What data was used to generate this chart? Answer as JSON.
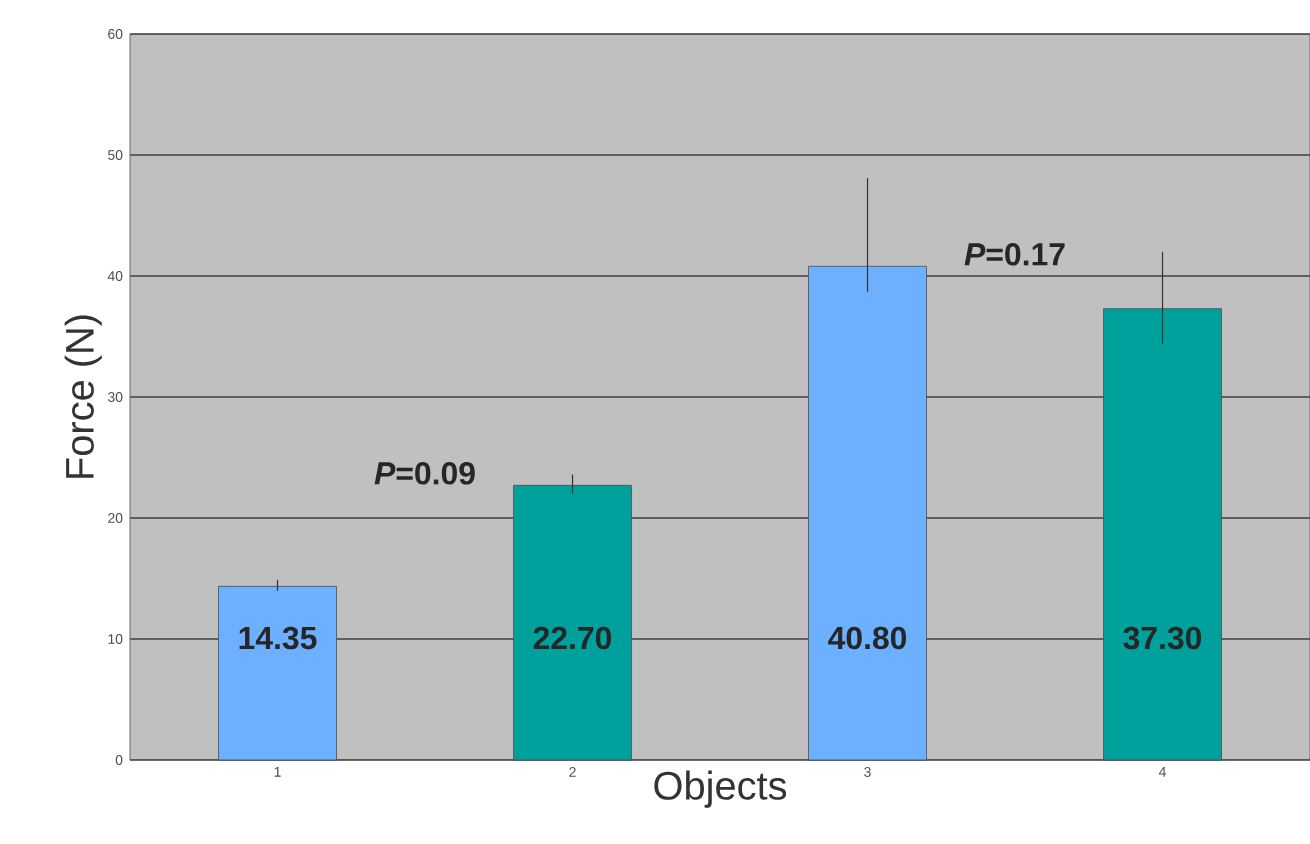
{
  "chart_data": {
    "type": "bar",
    "xlabel": "Objects",
    "ylabel": "Force (N)",
    "categories": [
      "1",
      "2",
      "3",
      "4"
    ],
    "values": [
      14.35,
      22.7,
      40.8,
      37.3
    ],
    "colors": [
      "#6cb0ff",
      "#00a19d",
      "#6cb0ff",
      "#00a19d"
    ],
    "errors": [
      [
        14.0,
        14.9
      ],
      [
        22.0,
        23.6
      ],
      [
        38.7,
        48.1
      ],
      [
        34.4,
        42.0
      ]
    ],
    "value_labels": [
      "14.35",
      "22.70",
      "40.80",
      "37.30"
    ],
    "annotations": [
      "*P*=0.09",
      "*P*=0.17"
    ],
    "ylim": [
      0,
      60
    ],
    "yticks": [
      0,
      10,
      20,
      30,
      40,
      50,
      60
    ],
    "grid": "y"
  }
}
